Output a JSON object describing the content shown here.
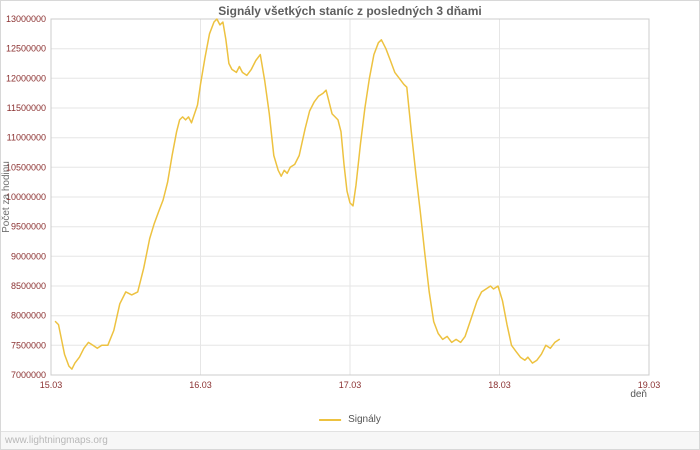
{
  "page": {
    "watermark": "www.lightningmaps.org"
  },
  "chart_data": {
    "type": "line",
    "title": "Signály všetkých staníc z posledných 3 dňami",
    "xlabel": "deň",
    "ylabel": "Počet za hodinu",
    "grid": true,
    "legend_position": "bottom-center",
    "xlim": [
      0,
      4
    ],
    "ylim": [
      7000000,
      13000000
    ],
    "ytick_step": 500000,
    "xtick_positions": [
      0,
      1,
      2,
      3,
      4
    ],
    "xtick_labels": [
      "15.03",
      "16.03",
      "17.03",
      "18.03",
      "19.03"
    ],
    "colors": {
      "line": "#edc240",
      "grid": "#e6e6e6",
      "plot_border": "#cccccc",
      "tick_label": "#8b3131",
      "title": "#5e5e5e",
      "legend_text": "#545454",
      "watermark": "#b8b8b8"
    },
    "series": [
      {
        "name": "Signály",
        "color": "#edc240",
        "points": [
          [
            0.03,
            7900000
          ],
          [
            0.05,
            7850000
          ],
          [
            0.07,
            7600000
          ],
          [
            0.09,
            7350000
          ],
          [
            0.12,
            7150000
          ],
          [
            0.14,
            7100000
          ],
          [
            0.16,
            7200000
          ],
          [
            0.19,
            7300000
          ],
          [
            0.22,
            7450000
          ],
          [
            0.25,
            7550000
          ],
          [
            0.28,
            7500000
          ],
          [
            0.31,
            7450000
          ],
          [
            0.34,
            7500000
          ],
          [
            0.38,
            7500000
          ],
          [
            0.42,
            7750000
          ],
          [
            0.46,
            8200000
          ],
          [
            0.5,
            8400000
          ],
          [
            0.54,
            8350000
          ],
          [
            0.58,
            8400000
          ],
          [
            0.62,
            8800000
          ],
          [
            0.66,
            9300000
          ],
          [
            0.69,
            9550000
          ],
          [
            0.72,
            9750000
          ],
          [
            0.75,
            9950000
          ],
          [
            0.78,
            10250000
          ],
          [
            0.81,
            10700000
          ],
          [
            0.84,
            11100000
          ],
          [
            0.86,
            11300000
          ],
          [
            0.88,
            11350000
          ],
          [
            0.9,
            11300000
          ],
          [
            0.92,
            11350000
          ],
          [
            0.94,
            11250000
          ],
          [
            0.96,
            11400000
          ],
          [
            0.98,
            11550000
          ],
          [
            1.0,
            11900000
          ],
          [
            1.03,
            12350000
          ],
          [
            1.06,
            12750000
          ],
          [
            1.09,
            12950000
          ],
          [
            1.11,
            13000000
          ],
          [
            1.13,
            12900000
          ],
          [
            1.15,
            12950000
          ],
          [
            1.17,
            12650000
          ],
          [
            1.19,
            12250000
          ],
          [
            1.21,
            12150000
          ],
          [
            1.24,
            12100000
          ],
          [
            1.26,
            12200000
          ],
          [
            1.28,
            12100000
          ],
          [
            1.31,
            12050000
          ],
          [
            1.34,
            12150000
          ],
          [
            1.37,
            12300000
          ],
          [
            1.4,
            12400000
          ],
          [
            1.43,
            11950000
          ],
          [
            1.46,
            11400000
          ],
          [
            1.49,
            10700000
          ],
          [
            1.52,
            10450000
          ],
          [
            1.54,
            10350000
          ],
          [
            1.56,
            10450000
          ],
          [
            1.58,
            10400000
          ],
          [
            1.6,
            10500000
          ],
          [
            1.63,
            10550000
          ],
          [
            1.66,
            10700000
          ],
          [
            1.7,
            11150000
          ],
          [
            1.73,
            11450000
          ],
          [
            1.76,
            11600000
          ],
          [
            1.79,
            11700000
          ],
          [
            1.82,
            11750000
          ],
          [
            1.84,
            11800000
          ],
          [
            1.86,
            11600000
          ],
          [
            1.88,
            11400000
          ],
          [
            1.9,
            11350000
          ],
          [
            1.92,
            11300000
          ],
          [
            1.94,
            11100000
          ],
          [
            1.96,
            10550000
          ],
          [
            1.98,
            10100000
          ],
          [
            2.0,
            9900000
          ],
          [
            2.02,
            9850000
          ],
          [
            2.04,
            10200000
          ],
          [
            2.07,
            10900000
          ],
          [
            2.1,
            11500000
          ],
          [
            2.13,
            12000000
          ],
          [
            2.16,
            12400000
          ],
          [
            2.19,
            12600000
          ],
          [
            2.21,
            12650000
          ],
          [
            2.24,
            12500000
          ],
          [
            2.27,
            12300000
          ],
          [
            2.3,
            12100000
          ],
          [
            2.33,
            12000000
          ],
          [
            2.36,
            11900000
          ],
          [
            2.38,
            11850000
          ],
          [
            2.41,
            11100000
          ],
          [
            2.44,
            10400000
          ],
          [
            2.47,
            9750000
          ],
          [
            2.5,
            9050000
          ],
          [
            2.53,
            8400000
          ],
          [
            2.56,
            7900000
          ],
          [
            2.59,
            7700000
          ],
          [
            2.62,
            7600000
          ],
          [
            2.65,
            7650000
          ],
          [
            2.68,
            7550000
          ],
          [
            2.71,
            7600000
          ],
          [
            2.74,
            7550000
          ],
          [
            2.77,
            7650000
          ],
          [
            2.81,
            7950000
          ],
          [
            2.85,
            8250000
          ],
          [
            2.88,
            8400000
          ],
          [
            2.91,
            8450000
          ],
          [
            2.94,
            8500000
          ],
          [
            2.96,
            8450000
          ],
          [
            2.99,
            8500000
          ],
          [
            3.02,
            8250000
          ],
          [
            3.05,
            7850000
          ],
          [
            3.08,
            7500000
          ],
          [
            3.11,
            7400000
          ],
          [
            3.14,
            7300000
          ],
          [
            3.17,
            7250000
          ],
          [
            3.19,
            7300000
          ],
          [
            3.22,
            7200000
          ],
          [
            3.25,
            7250000
          ],
          [
            3.28,
            7350000
          ],
          [
            3.31,
            7500000
          ],
          [
            3.34,
            7450000
          ],
          [
            3.37,
            7550000
          ],
          [
            3.4,
            7600000
          ]
        ]
      }
    ]
  }
}
